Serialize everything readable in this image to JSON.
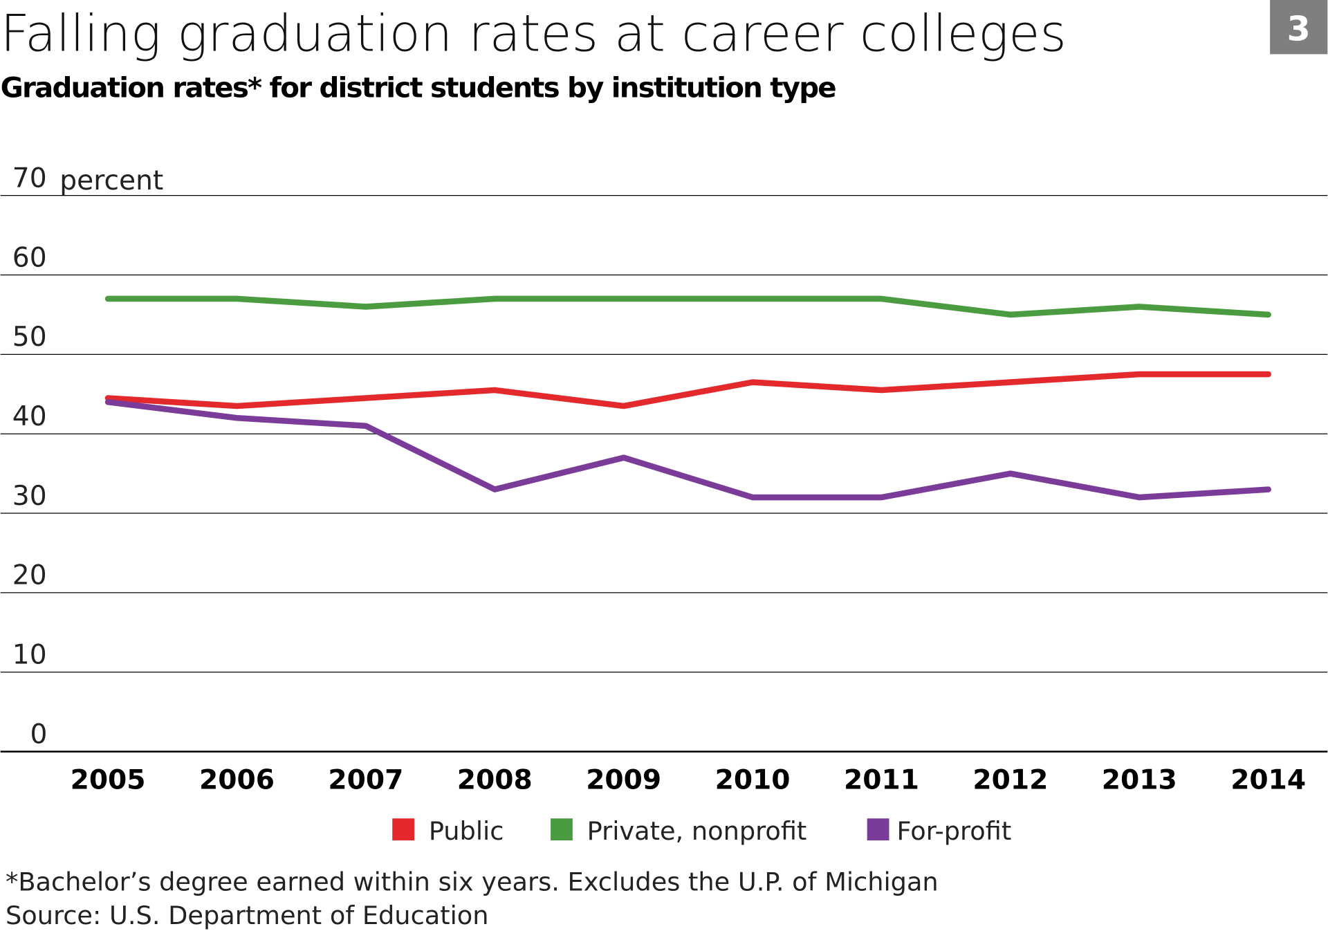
{
  "badge": "3",
  "chart_data": {
    "type": "line",
    "title": "Falling graduation rates at career colleges",
    "subtitle": "Graduation rates* for district students by institution type",
    "ylabel": "percent",
    "ylim": [
      0,
      70
    ],
    "yticks": [
      0,
      10,
      20,
      30,
      40,
      50,
      60,
      70
    ],
    "grid": true,
    "legend_position": "bottom",
    "categories": [
      "2005",
      "2006",
      "2007",
      "2008",
      "2009",
      "2010",
      "2011",
      "2012",
      "2013",
      "2014"
    ],
    "series": [
      {
        "name": "Public",
        "color": "#e3292b",
        "values": [
          44.5,
          43.5,
          44.5,
          45.5,
          43.5,
          46.5,
          45.5,
          46.5,
          47.5,
          47.5
        ]
      },
      {
        "name": "Private, nonprofit",
        "color": "#4b9b40",
        "values": [
          57,
          57,
          56,
          57,
          57,
          57,
          57,
          55,
          56,
          55
        ]
      },
      {
        "name": "For-profit",
        "color": "#7b3b98",
        "values": [
          44,
          42,
          41,
          33,
          37,
          32,
          32,
          35,
          32,
          33
        ]
      }
    ],
    "footnote": "*Bachelor’s degree earned within six years. Excludes the U.P. of Michigan",
    "source": "Source: U.S. Department of Education"
  }
}
